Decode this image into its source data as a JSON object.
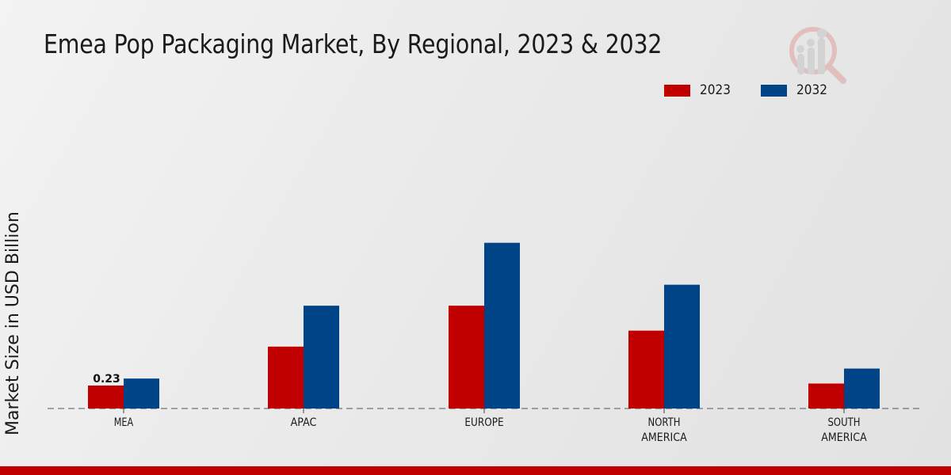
{
  "chart_data": {
    "type": "bar",
    "title": "Emea Pop Packaging Market, By Regional, 2023 & 2032",
    "xlabel": "",
    "ylabel": "Market Size in USD Billion",
    "ylim": [
      0,
      2.0
    ],
    "grid": false,
    "legend_position": "top-right",
    "categories": [
      [
        "MEA"
      ],
      [
        "APAC"
      ],
      [
        "EUROPE"
      ],
      [
        "NORTH",
        "AMERICA"
      ],
      [
        "SOUTH",
        "AMERICA"
      ]
    ],
    "category_names": [
      "MEA",
      "APAC",
      "EUROPE",
      "NORTH AMERICA",
      "SOUTH AMERICA"
    ],
    "series": [
      {
        "name": "2023",
        "color": "#c00000",
        "values": [
          0.23,
          0.62,
          1.03,
          0.78,
          0.25
        ]
      },
      {
        "name": "2032",
        "color": "#004488",
        "values": [
          0.3,
          1.03,
          1.66,
          1.24,
          0.4
        ]
      }
    ],
    "data_labels": [
      {
        "series": 0,
        "category": 0,
        "text": "0.23"
      }
    ]
  },
  "legend": [
    {
      "label": "2023",
      "color": "#c00000"
    },
    {
      "label": "2032",
      "color": "#004488"
    }
  ],
  "colors": {
    "accent_bar": "#c00000"
  },
  "logo": {
    "icon": "magnifier-chart-logo-icon"
  }
}
